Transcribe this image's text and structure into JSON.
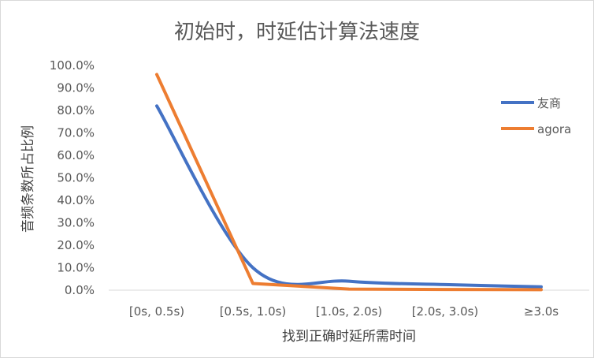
{
  "chart_data": {
    "type": "line",
    "title": "初始时，时延估计算法速度",
    "xlabel": "找到正确时延所需时间",
    "ylabel": "音频条数所占比例",
    "categories": [
      "[0s, 0.5s)",
      "[0.5s, 1.0s)",
      "[1.0s, 2.0s)",
      "[2.0s, 3.0s)",
      "≥3.0s"
    ],
    "ylim": [
      0,
      100
    ],
    "yticks": [
      "0.0%",
      "10.0%",
      "20.0%",
      "30.0%",
      "40.0%",
      "50.0%",
      "60.0%",
      "70.0%",
      "80.0%",
      "90.0%",
      "100.0%"
    ],
    "grid": false,
    "legend_position": "right",
    "series": [
      {
        "name": "友商",
        "color": "#4472c4",
        "smooth": true,
        "values": [
          82,
          10,
          4,
          2.5,
          1.5
        ]
      },
      {
        "name": "agora",
        "color": "#ed7d31",
        "smooth": false,
        "values": [
          96,
          3,
          0.5,
          0.3,
          0.2
        ]
      }
    ]
  }
}
